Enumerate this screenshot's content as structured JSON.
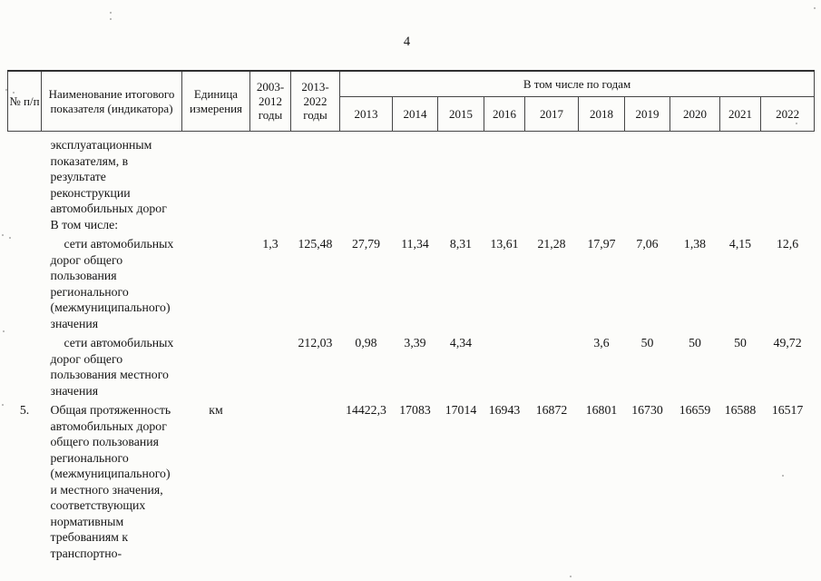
{
  "page_number": "4",
  "table": {
    "header": {
      "num": "№ п/п",
      "indicator": "Наименование итогового показателя (индикатора)",
      "unit": "Единица измерения",
      "period1": "2003-2012 годы",
      "period2": "2013-2022 годы",
      "years_group": "В том числе по годам",
      "years": [
        "2013",
        "2014",
        "2015",
        "2016",
        "2017",
        "2018",
        "2019",
        "2020",
        "2021",
        "2022"
      ]
    },
    "rows": [
      {
        "num": "",
        "name_lines": [
          "эксплуатационным",
          "показателям, в",
          "результате",
          "реконструкции",
          "автомобильных дорог",
          "В том числе:"
        ],
        "indent_first": false,
        "unit": "",
        "period1": "",
        "period2": "",
        "years": [
          "",
          "",
          "",
          "",
          "",
          "",
          "",
          "",
          "",
          ""
        ]
      },
      {
        "num": "",
        "name_lines": [
          "сети автомобильных",
          "дорог общего",
          "пользования",
          "регионального",
          "(межмуниципального)",
          "значения"
        ],
        "indent_first": true,
        "unit": "",
        "period1": "1,3",
        "period2": "125,48",
        "years": [
          "27,79",
          "11,34",
          "8,31",
          "13,61",
          "21,28",
          "17,97",
          "7,06",
          "1,38",
          "4,15",
          "12,6"
        ]
      },
      {
        "num": "",
        "name_lines": [
          "сети автомобильных",
          "дорог общего",
          "пользования местного",
          "значения"
        ],
        "indent_first": true,
        "unit": "",
        "period1": "",
        "period2": "212,03",
        "years": [
          "0,98",
          "3,39",
          "4,34",
          "",
          "",
          "3,6",
          "50",
          "50",
          "50",
          "49,72"
        ]
      },
      {
        "num": "5.",
        "name_lines": [
          "Общая протяженность",
          "автомобильных дорог",
          "общего пользования",
          "регионального",
          "(межмуниципального)",
          "и местного значения,",
          "соответствующих",
          "нормативным",
          "требованиям к",
          "транспортно-"
        ],
        "indent_first": false,
        "unit": "км",
        "period1": "",
        "period2": "",
        "years": [
          "14422,3",
          "17083",
          "17014",
          "16943",
          "16872",
          "16801",
          "16730",
          "16659",
          "16588",
          "16517"
        ]
      }
    ]
  }
}
